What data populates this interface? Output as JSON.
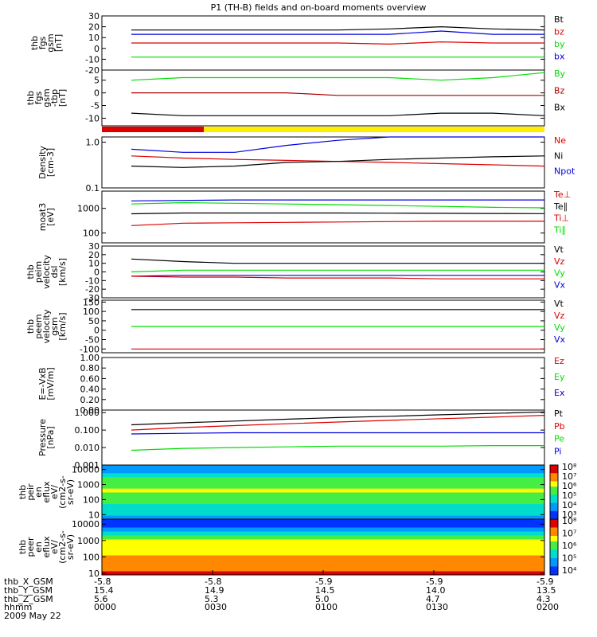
{
  "title": "P1 (TH-B) fields and on-board moments overview",
  "colors": {
    "black": "#000000",
    "red": "#dd0000",
    "green": "#00dd00",
    "blue": "#0000dd",
    "darkred": "#aa0000",
    "yellow": "#ffee00"
  },
  "panels": [
    {
      "ylabel": [
        "thb",
        "fgs",
        "gsm",
        "[nT]"
      ],
      "yticks": [
        "30",
        "20",
        "10",
        "0",
        "-10",
        "-20"
      ],
      "ylim": [
        -20,
        30
      ],
      "scale": "linear",
      "legend": [
        {
          "t": "Bt",
          "c": "black"
        },
        {
          "t": "bz",
          "c": "red"
        },
        {
          "t": "by",
          "c": "green"
        },
        {
          "t": "bx",
          "c": "blue"
        }
      ],
      "series": [
        {
          "c": "black",
          "v": [
            17,
            17,
            17,
            17,
            17,
            18,
            20,
            18,
            17
          ]
        },
        {
          "c": "blue",
          "v": [
            13,
            13,
            13,
            13,
            13,
            13,
            16,
            13,
            13
          ]
        },
        {
          "c": "red",
          "v": [
            5,
            5,
            5,
            5,
            5,
            4,
            6,
            5,
            5
          ]
        },
        {
          "c": "green",
          "v": [
            -8,
            -8,
            -8,
            -8,
            -8,
            -8,
            -8,
            -8,
            -8
          ]
        }
      ]
    },
    {
      "ylabel": [
        "thb",
        "fgs",
        "gsm",
        "-tbp",
        "[nT]"
      ],
      "yticks": [
        "5",
        "0",
        "-5",
        "-10"
      ],
      "ylim": [
        -13,
        9
      ],
      "scale": "linear",
      "legend": [
        {
          "t": "By",
          "c": "green"
        },
        {
          "t": "Bz",
          "c": "darkred"
        },
        {
          "t": "Bx",
          "c": "black"
        }
      ],
      "series": [
        {
          "c": "green",
          "v": [
            5,
            6,
            6,
            6,
            6,
            6,
            5,
            6,
            8
          ]
        },
        {
          "c": "darkred",
          "v": [
            0,
            0,
            0,
            0,
            -1,
            -1,
            -1,
            -1,
            -1
          ]
        },
        {
          "c": "black",
          "v": [
            -8,
            -9,
            -9,
            -9,
            -9,
            -9,
            -8,
            -8,
            -9
          ]
        }
      ]
    },
    {
      "ylabel": [
        "Density",
        "[cm-3]"
      ],
      "yticks": [
        "1.0",
        "0.1"
      ],
      "ylim": [
        0.1,
        1.3
      ],
      "scale": "log",
      "legend": [
        {
          "t": "Ne",
          "c": "red"
        },
        {
          "t": "Ni",
          "c": "black"
        },
        {
          "t": "Npot",
          "c": "blue"
        }
      ],
      "series": [
        {
          "c": "blue",
          "v": [
            0.7,
            0.6,
            0.6,
            0.85,
            1.1,
            1.3,
            1.3,
            1.3,
            1.3
          ]
        },
        {
          "c": "red",
          "v": [
            0.5,
            0.45,
            0.42,
            0.4,
            0.38,
            0.36,
            0.34,
            0.32,
            0.3
          ]
        },
        {
          "c": "black",
          "v": [
            0.3,
            0.28,
            0.3,
            0.36,
            0.38,
            0.42,
            0.45,
            0.48,
            0.5
          ]
        }
      ]
    },
    {
      "ylabel": [
        "moat3",
        "[eV]"
      ],
      "yticks": [
        "1000",
        "100"
      ],
      "ylim": [
        40,
        5000
      ],
      "scale": "log",
      "legend": [
        {
          "t": "Te⊥",
          "c": "red"
        },
        {
          "t": "Te∥",
          "c": "black"
        },
        {
          "t": "Ti⊥",
          "c": "red"
        },
        {
          "t": "Ti∥",
          "c": "green"
        }
      ],
      "series": [
        {
          "c": "blue",
          "v": [
            2000,
            2100,
            2200,
            2200,
            2200,
            2200,
            2200,
            2200,
            2200
          ]
        },
        {
          "c": "green",
          "v": [
            1500,
            1700,
            1600,
            1500,
            1400,
            1300,
            1200,
            1100,
            1050
          ]
        },
        {
          "c": "black",
          "v": [
            600,
            650,
            650,
            650,
            650,
            640,
            630,
            620,
            610
          ]
        },
        {
          "c": "red",
          "v": [
            200,
            250,
            260,
            270,
            280,
            290,
            300,
            300,
            300
          ]
        }
      ]
    },
    {
      "ylabel": [
        "thb",
        "peim",
        "velocity",
        "dsl",
        "[km/s]"
      ],
      "yticks": [
        "30",
        "20",
        "10",
        "0",
        "-10",
        "-20",
        "-30"
      ],
      "ylim": [
        -30,
        30
      ],
      "scale": "linear",
      "legend": [
        {
          "t": "Vt",
          "c": "black"
        },
        {
          "t": "Vz",
          "c": "red"
        },
        {
          "t": "Vy",
          "c": "green"
        },
        {
          "t": "Vx",
          "c": "blue"
        }
      ],
      "series": [
        {
          "c": "black",
          "v": [
            15,
            12,
            10,
            10,
            10,
            10,
            10,
            10,
            10
          ]
        },
        {
          "c": "blue",
          "v": [
            -5,
            -4,
            -4,
            -4,
            -4,
            -4,
            -4,
            -4,
            -4
          ]
        },
        {
          "c": "green",
          "v": [
            0,
            2,
            2,
            2,
            2,
            2,
            2,
            2,
            2
          ]
        },
        {
          "c": "red",
          "v": [
            -5,
            -6,
            -6,
            -7,
            -7,
            -7,
            -8,
            -8,
            -8
          ]
        }
      ]
    },
    {
      "ylabel": [
        "thb",
        "peem",
        "velocity",
        "gsm",
        "[km/s]"
      ],
      "yticks": [
        "150",
        "100",
        "50",
        "0",
        "-50",
        "-100"
      ],
      "ylim": [
        -120,
        160
      ],
      "scale": "linear",
      "legend": [
        {
          "t": "Vt",
          "c": "black"
        },
        {
          "t": "Vz",
          "c": "red"
        },
        {
          "t": "Vy",
          "c": "green"
        },
        {
          "t": "Vx",
          "c": "blue"
        }
      ],
      "series": [
        {
          "c": "black",
          "v": [
            110,
            110,
            110,
            110,
            110,
            110,
            110,
            110,
            110
          ]
        },
        {
          "c": "green",
          "v": [
            20,
            20,
            20,
            20,
            20,
            20,
            20,
            20,
            20
          ]
        },
        {
          "c": "red",
          "v": [
            -100,
            -100,
            -100,
            -100,
            -100,
            -100,
            -100,
            -100,
            -100
          ]
        }
      ]
    },
    {
      "ylabel": [
        "E=-VxB",
        "[mV/m]"
      ],
      "yticks": [
        "1.00",
        "0.80",
        "0.60",
        "0.40",
        "0.20",
        "0.00"
      ],
      "ylim": [
        0,
        1
      ],
      "scale": "linear",
      "legend": [
        {
          "t": "Ez",
          "c": "red"
        },
        {
          "t": "Ey",
          "c": "green"
        },
        {
          "t": "Ex",
          "c": "blue"
        }
      ],
      "series": []
    },
    {
      "ylabel": [
        "Pressure",
        "[nPa]"
      ],
      "yticks": [
        "1.000",
        "0.100",
        "0.010",
        "0.001"
      ],
      "ylim": [
        0.001,
        1.4
      ],
      "scale": "log",
      "legend": [
        {
          "t": "Pt",
          "c": "black"
        },
        {
          "t": "Pb",
          "c": "red"
        },
        {
          "t": "Pe",
          "c": "green"
        },
        {
          "t": "Pi",
          "c": "blue"
        }
      ],
      "series": [
        {
          "c": "black",
          "v": [
            0.2,
            0.26,
            0.33,
            0.42,
            0.52,
            0.62,
            0.75,
            0.9,
            1.1
          ]
        },
        {
          "c": "red",
          "v": [
            0.1,
            0.14,
            0.18,
            0.23,
            0.29,
            0.36,
            0.45,
            0.55,
            0.7
          ]
        },
        {
          "c": "blue",
          "v": [
            0.06,
            0.065,
            0.07,
            0.07,
            0.07,
            0.07,
            0.07,
            0.07,
            0.07
          ]
        },
        {
          "c": "green",
          "v": [
            0.007,
            0.009,
            0.01,
            0.011,
            0.012,
            0.012,
            0.012,
            0.013,
            0.013
          ]
        }
      ]
    },
    {
      "ylabel": [
        "thb",
        "peir",
        "en",
        "eflux",
        "eV/",
        "(cm2-s-",
        "sr-eV)"
      ],
      "yticks": [
        "10000",
        "1000",
        "100",
        "10"
      ],
      "ylim": [
        5,
        20000
      ],
      "scale": "log",
      "legend": [],
      "series": []
    },
    {
      "ylabel": [
        "thb",
        "peer",
        "en",
        "eflux",
        "eV/",
        "(cm2-s-",
        "sr-eV)"
      ],
      "yticks": [
        "10000",
        "1000",
        "100",
        "10"
      ],
      "ylim": [
        8,
        20000
      ],
      "scale": "log",
      "legend": [],
      "series": []
    }
  ],
  "colorbar1": [
    "10⁸",
    "10⁷",
    "10⁶",
    "10⁵",
    "10⁴",
    "10³"
  ],
  "colorbar2": [
    "10⁸",
    "10⁷",
    "10⁶",
    "10⁵",
    "10⁴"
  ],
  "xaxis": {
    "rowlabels": [
      "thb_X_GSM",
      "thb_Y_GSM",
      "thb_Z_GSM",
      "hhmm",
      "2009 May 22"
    ],
    "cols": [
      [
        "-5.8",
        "15.4",
        "5.6",
        "0000"
      ],
      [
        "-5.8",
        "14.9",
        "5.3",
        "0030"
      ],
      [
        "-5.9",
        "14.5",
        "5.0",
        "0100"
      ],
      [
        "-5.9",
        "14.0",
        "4.7",
        "0130"
      ],
      [
        "-5.9",
        "13.5",
        "4.3",
        "0200"
      ]
    ]
  }
}
